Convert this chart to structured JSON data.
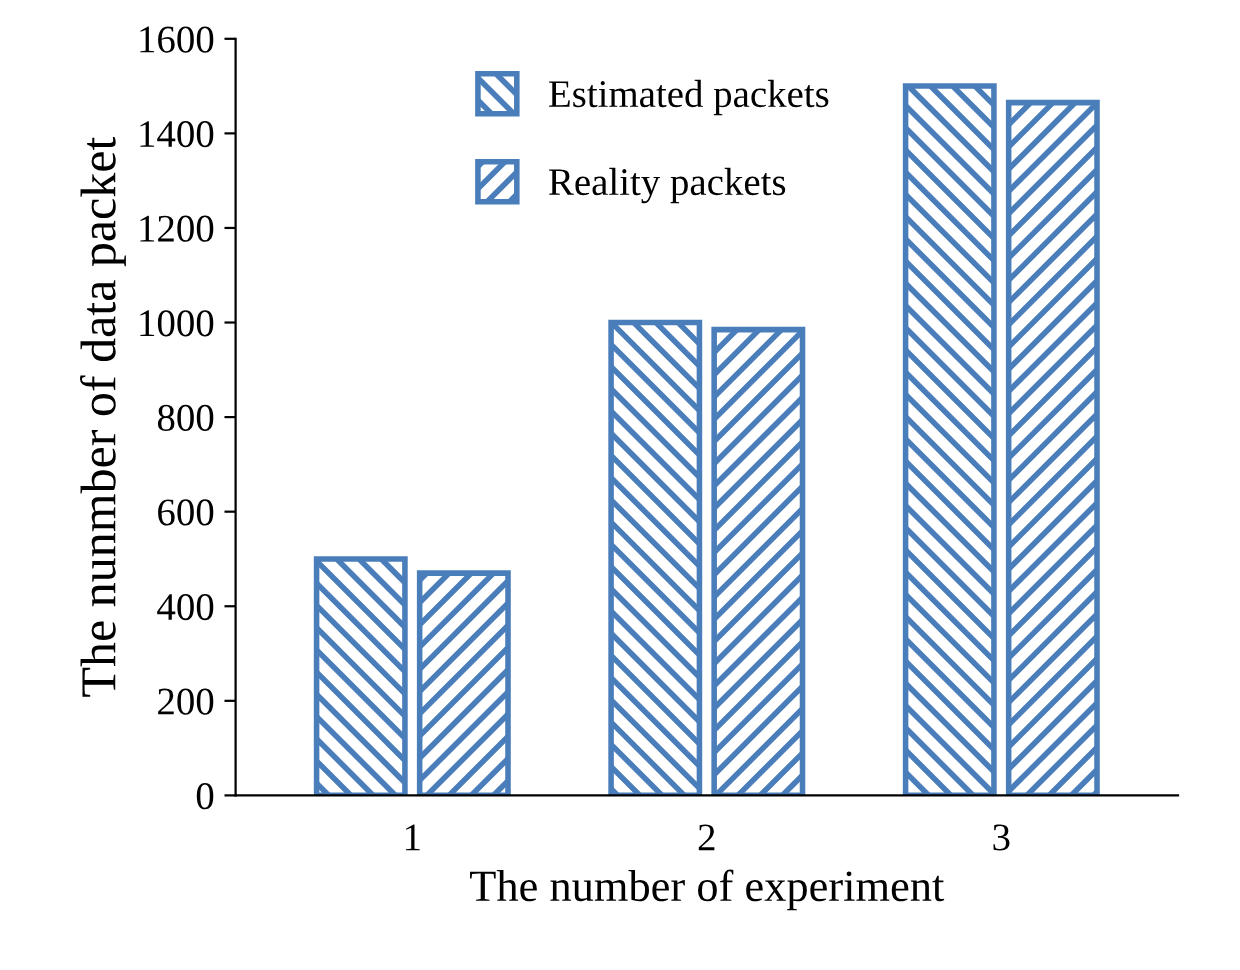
{
  "chart_data": {
    "type": "bar",
    "xlabel": "The number of experiment",
    "ylabel": "The nunmber of data packet",
    "categories": [
      "1",
      "2",
      "3"
    ],
    "series": [
      {
        "name": "Estimated packets",
        "color": "#4a7ebb",
        "values": [
          500,
          1000,
          1500
        ]
      },
      {
        "name": "Reality packets",
        "color": "#4a7ebb",
        "values": [
          470,
          985,
          1465
        ]
      }
    ],
    "ylim": [
      0,
      1600
    ],
    "yticks": [
      0,
      200,
      400,
      600,
      800,
      1000,
      1200,
      1400,
      1600
    ],
    "grid": false,
    "legend": "top left"
  }
}
